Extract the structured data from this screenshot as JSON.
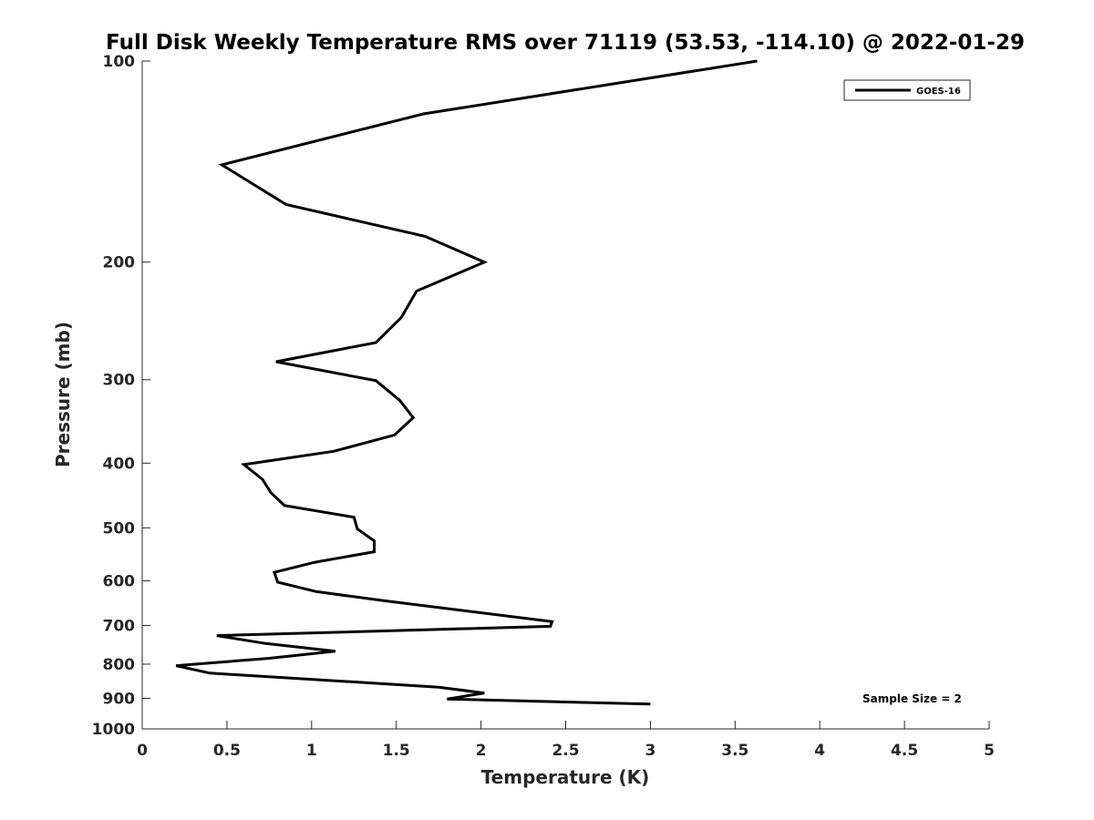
{
  "chart_data": {
    "type": "line",
    "title": "Full Disk Weekly Temperature RMS over 71119 (53.53, -114.10) @ 2022-01-29",
    "xlabel": "Temperature (K)",
    "ylabel": "Pressure (mb)",
    "xlim": [
      0,
      5
    ],
    "ylim": [
      100,
      1000
    ],
    "y_scale": "log",
    "y_reversed": true,
    "xticks": [
      0,
      0.5,
      1,
      1.5,
      2,
      2.5,
      3,
      3.5,
      4,
      4.5,
      5
    ],
    "xtick_labels": [
      "0",
      "0.5",
      "1",
      "1.5",
      "2",
      "2.5",
      "3",
      "3.5",
      "4",
      "4.5",
      "5"
    ],
    "yticks": [
      100,
      200,
      300,
      400,
      500,
      600,
      700,
      800,
      900,
      1000
    ],
    "ytick_labels": [
      "100",
      "200",
      "300",
      "400",
      "500",
      "600",
      "700",
      "800",
      "900",
      "1000"
    ],
    "grid": false,
    "legend_position": "top-right",
    "series": [
      {
        "name": "GOES-16",
        "color": "#000000",
        "points": [
          [
            3.63,
            100
          ],
          [
            1.66,
            120
          ],
          [
            0.47,
            143
          ],
          [
            0.85,
            164
          ],
          [
            1.67,
            183
          ],
          [
            2.02,
            200
          ],
          [
            1.62,
            221
          ],
          [
            1.53,
            242
          ],
          [
            1.38,
            264
          ],
          [
            0.79,
            282
          ],
          [
            1.38,
            301
          ],
          [
            1.52,
            322
          ],
          [
            1.6,
            342
          ],
          [
            1.49,
            363
          ],
          [
            1.13,
            384
          ],
          [
            0.6,
            402
          ],
          [
            0.71,
            423
          ],
          [
            0.76,
            443
          ],
          [
            0.84,
            463
          ],
          [
            1.25,
            482
          ],
          [
            1.27,
            502
          ],
          [
            1.37,
            523
          ],
          [
            1.37,
            543
          ],
          [
            1.02,
            563
          ],
          [
            0.78,
            583
          ],
          [
            0.8,
            603
          ],
          [
            1.03,
            623
          ],
          [
            1.43,
            643
          ],
          [
            2.42,
            691
          ],
          [
            2.41,
            702
          ],
          [
            0.44,
            725
          ],
          [
            0.73,
            745
          ],
          [
            1.14,
            765
          ],
          [
            0.75,
            784
          ],
          [
            0.2,
            804
          ],
          [
            0.4,
            825
          ],
          [
            1.75,
            866
          ],
          [
            2.02,
            884
          ],
          [
            1.8,
            902
          ],
          [
            3.0,
            918
          ]
        ]
      }
    ],
    "annotation": "Sample Size = 2"
  }
}
